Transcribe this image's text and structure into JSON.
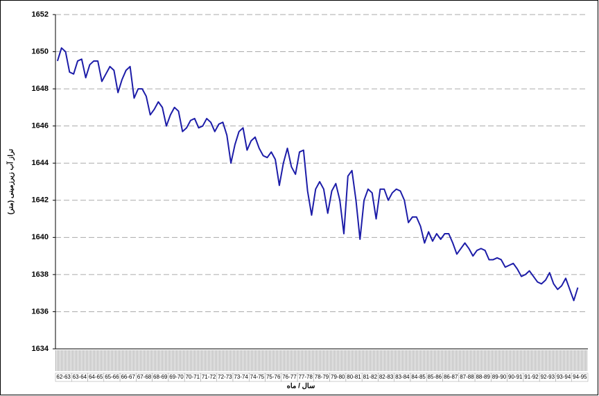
{
  "chart_data": {
    "type": "line",
    "y_label": "تراز آب زیرزمینی (متر)",
    "x_label": "سال / ماه",
    "categories": [
      "62-63",
      null,
      null,
      null,
      "63-64",
      null,
      null,
      null,
      "64-65",
      null,
      null,
      null,
      "65-66",
      null,
      null,
      null,
      "66-67",
      null,
      null,
      null,
      "67-68",
      null,
      null,
      null,
      "68-69",
      null,
      null,
      null,
      "69-70",
      null,
      null,
      null,
      "70-71",
      null,
      null,
      null,
      "71-72",
      null,
      null,
      null,
      "72-73",
      null,
      null,
      null,
      "73-74",
      null,
      null,
      null,
      "74-75",
      null,
      null,
      null,
      "75-76",
      null,
      null,
      null,
      "76-77",
      null,
      null,
      null,
      "77-78",
      null,
      null,
      null,
      "78-79",
      null,
      null,
      null,
      "79-80",
      null,
      null,
      null,
      "80-81",
      null,
      null,
      null,
      "81-82",
      null,
      null,
      null,
      "82-83",
      null,
      null,
      null,
      "83-84",
      null,
      null,
      null,
      "84-85",
      null,
      null,
      null,
      "85-86",
      null,
      null,
      null,
      "86-87",
      null,
      null,
      null,
      "87-88",
      null,
      null,
      null,
      "88-89",
      null,
      null,
      null,
      "89-90",
      null,
      null,
      null,
      "90-91",
      null,
      null,
      null,
      "91-92",
      null,
      null,
      null,
      "92-93",
      null,
      null,
      null,
      "93-94",
      null,
      null,
      null,
      "94-95",
      null,
      null,
      null
    ],
    "values": [
      1649.5,
      1650.2,
      1650.0,
      1648.9,
      1648.8,
      1649.5,
      1649.6,
      1648.6,
      1649.3,
      1649.5,
      1649.5,
      1648.4,
      1648.8,
      1649.2,
      1649.0,
      1647.8,
      1648.5,
      1649.0,
      1649.2,
      1647.5,
      1648.0,
      1648.0,
      1647.6,
      1646.6,
      1646.9,
      1647.3,
      1647.0,
      1646.0,
      1646.6,
      1647.0,
      1646.8,
      1645.7,
      1645.9,
      1646.3,
      1646.4,
      1645.9,
      1646.0,
      1646.4,
      1646.2,
      1645.7,
      1646.1,
      1646.2,
      1645.5,
      1644.0,
      1645.0,
      1645.7,
      1645.9,
      1644.7,
      1645.2,
      1645.4,
      1644.8,
      1644.4,
      1644.3,
      1644.6,
      1644.2,
      1642.8,
      1644.0,
      1644.8,
      1643.8,
      1643.4,
      1644.6,
      1644.7,
      1642.5,
      1641.2,
      1642.6,
      1643.0,
      1642.6,
      1641.3,
      1642.5,
      1642.9,
      1642.0,
      1640.2,
      1643.3,
      1643.6,
      1642.0,
      1639.9,
      1642.0,
      1642.6,
      1642.4,
      1641.0,
      1642.6,
      1642.6,
      1642.0,
      1642.4,
      1642.6,
      1642.5,
      1642.0,
      1640.8,
      1641.1,
      1641.1,
      1640.6,
      1639.7,
      1640.3,
      1639.8,
      1640.2,
      1639.9,
      1640.2,
      1640.2,
      1639.7,
      1639.1,
      1639.4,
      1639.7,
      1639.4,
      1639.0,
      1639.3,
      1639.4,
      1639.3,
      1638.8,
      1638.8,
      1638.9,
      1638.8,
      1638.4,
      1638.5,
      1638.6,
      1638.3,
      1637.9,
      1638.0,
      1638.2,
      1637.9,
      1637.6,
      1637.5,
      1637.7,
      1638.1,
      1637.5,
      1637.2,
      1637.4,
      1637.8,
      1637.2,
      1636.6,
      1637.3,
      null,
      null
    ],
    "color": "#1c1ca8",
    "ylim": [
      1634,
      1652
    ],
    "yticks": [
      1634,
      1636,
      1638,
      1640,
      1642,
      1644,
      1646,
      1648,
      1650,
      1652
    ],
    "grid": true
  }
}
